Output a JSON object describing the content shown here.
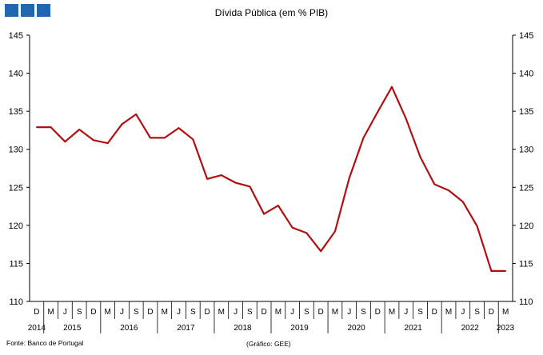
{
  "logo": {
    "color": "#2166b0"
  },
  "title": "Dívida Pública (em % PIB)",
  "source": "Fonte: Banco de Portugal",
  "credit": "(Gráfico: GEE)",
  "chart_data": {
    "type": "line",
    "title": "Dívida Pública (em % PIB)",
    "xlabel": "",
    "ylabel": "",
    "ylim": [
      110,
      145
    ],
    "yticks": [
      110,
      115,
      120,
      125,
      130,
      135,
      140,
      145
    ],
    "grid": false,
    "legend": "none",
    "line_color": "#b01010",
    "categories": [
      "D",
      "M",
      "J",
      "S",
      "D",
      "M",
      "J",
      "S",
      "D",
      "M",
      "J",
      "S",
      "D",
      "M",
      "J",
      "S",
      "D",
      "M",
      "J",
      "S",
      "D",
      "M",
      "J",
      "S",
      "D",
      "M",
      "J",
      "S",
      "D",
      "M",
      "J",
      "S",
      "D",
      "M"
    ],
    "year_labels": [
      {
        "label": "2014",
        "start": 0,
        "end": 0
      },
      {
        "label": "2015",
        "start": 1,
        "end": 4
      },
      {
        "label": "2016",
        "start": 5,
        "end": 8
      },
      {
        "label": "2017",
        "start": 9,
        "end": 12
      },
      {
        "label": "2018",
        "start": 13,
        "end": 16
      },
      {
        "label": "2019",
        "start": 17,
        "end": 20
      },
      {
        "label": "2020",
        "start": 21,
        "end": 24
      },
      {
        "label": "2021",
        "start": 25,
        "end": 28
      },
      {
        "label": "2022",
        "start": 29,
        "end": 32
      },
      {
        "label": "2023",
        "start": 33,
        "end": 33
      }
    ],
    "series": [
      {
        "values": [
          132.9,
          132.9,
          131.0,
          132.6,
          131.2,
          130.8,
          133.3,
          134.6,
          131.5,
          131.5,
          132.8,
          131.3,
          126.1,
          126.6,
          125.6,
          125.1,
          121.5,
          122.6,
          119.7,
          119.0,
          116.6,
          119.2,
          126.2,
          131.5,
          134.9,
          138.2,
          134.0,
          129.0,
          125.4,
          124.6,
          123.1,
          119.9,
          114.0,
          114.0
        ]
      }
    ]
  }
}
